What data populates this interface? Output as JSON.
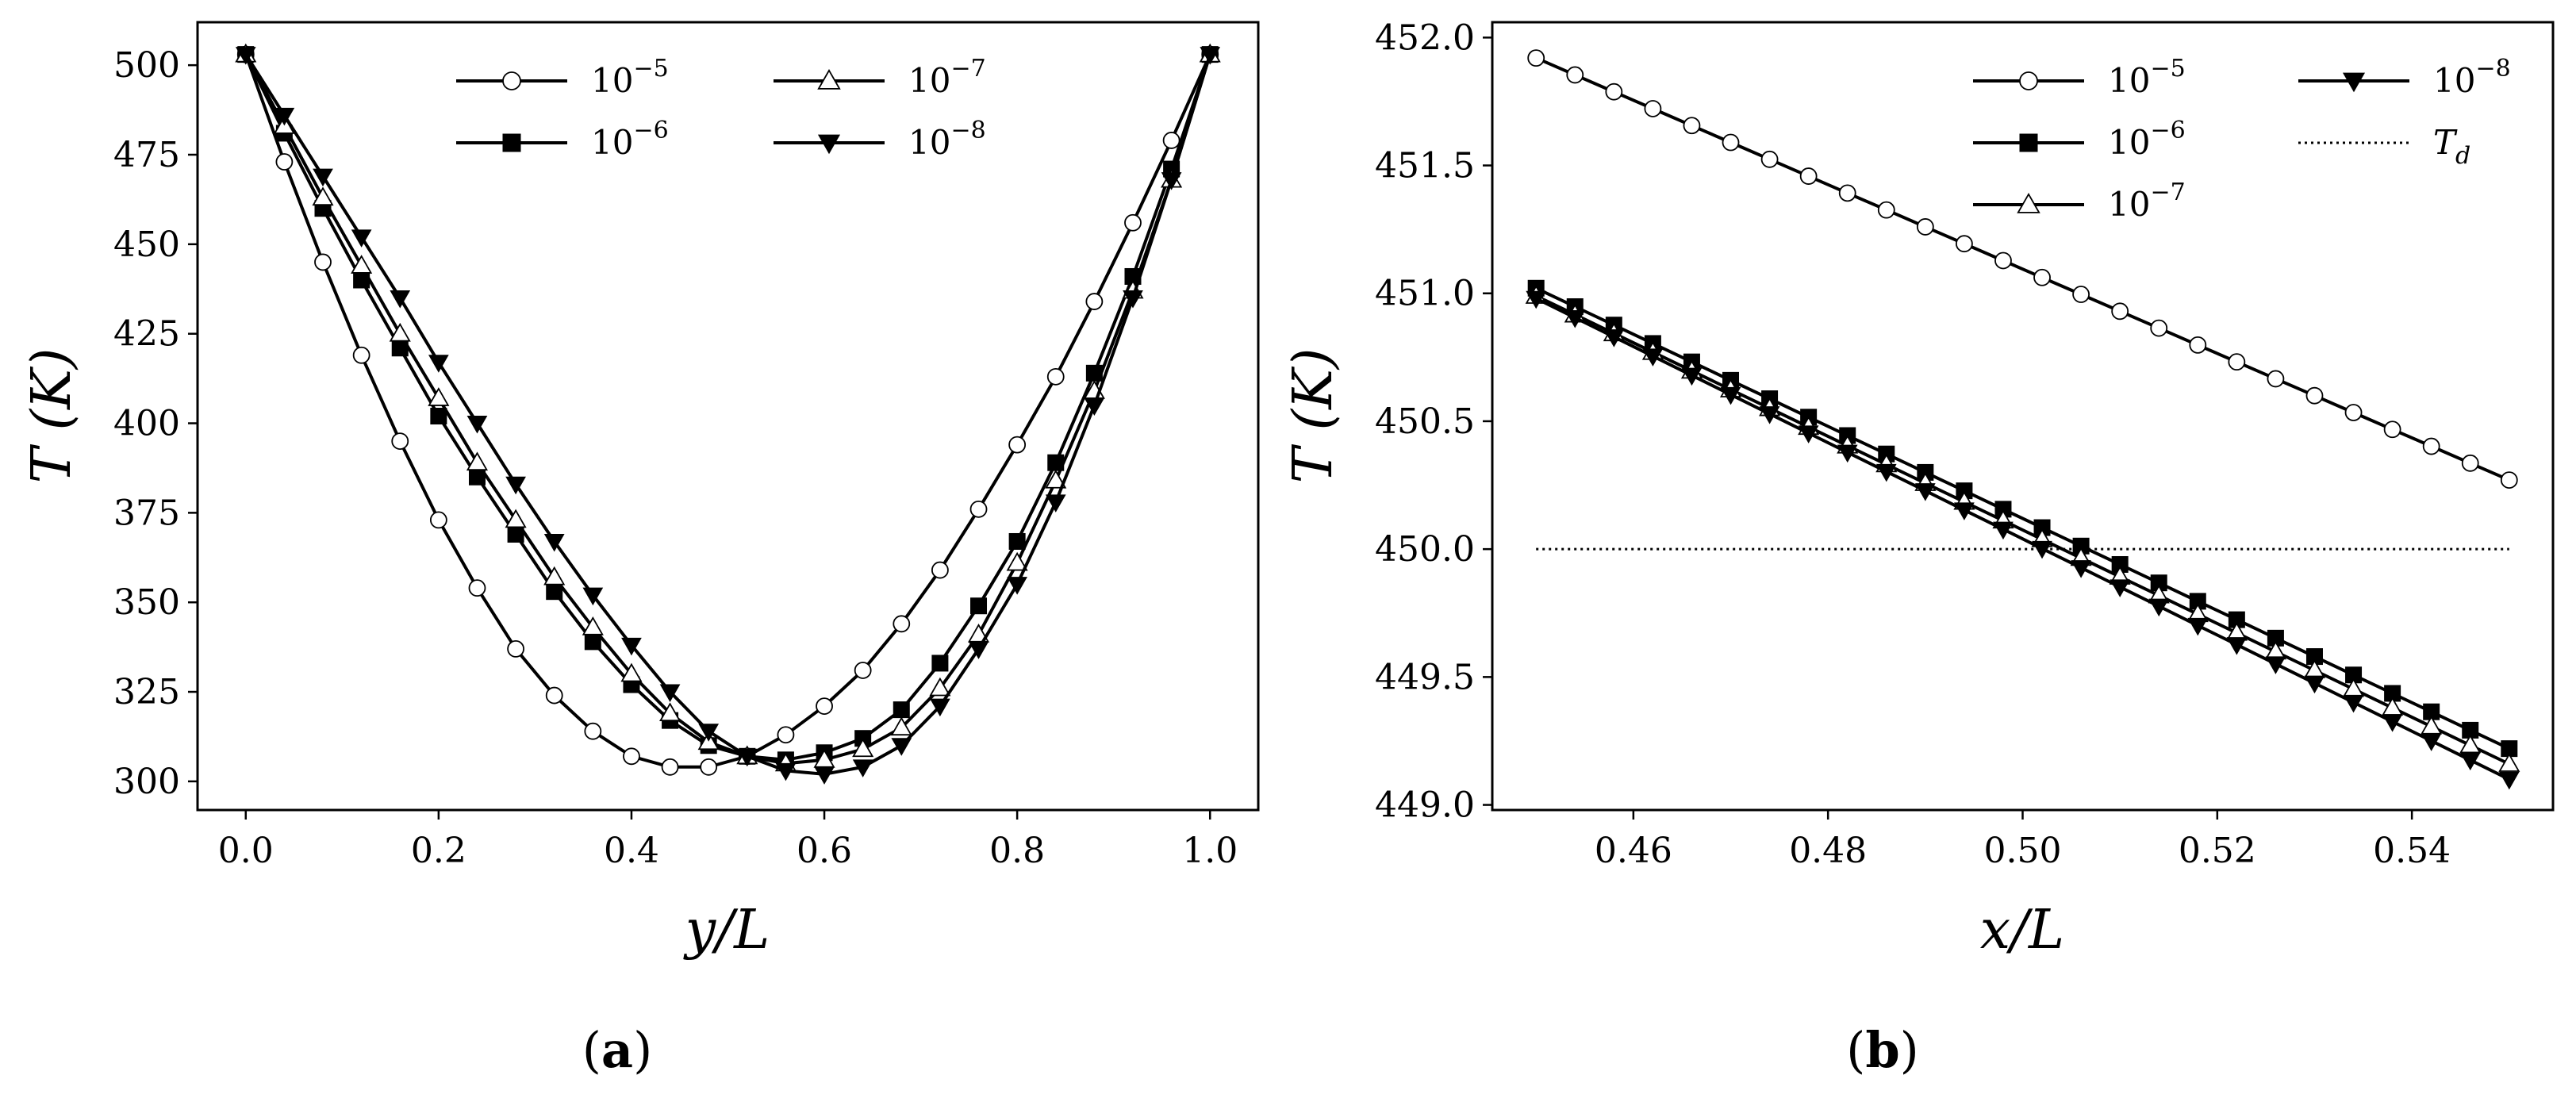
{
  "chart_data": [
    {
      "type": "line",
      "panel": "a",
      "caption_open": "(",
      "caption_letter": "a",
      "caption_close": ")",
      "xlabel": "y/L",
      "ylabel": "T (K)",
      "xlim": [
        -0.05,
        1.05
      ],
      "ylim": [
        292,
        512
      ],
      "xticks": [
        0.0,
        0.2,
        0.4,
        0.6,
        0.8,
        1.0
      ],
      "xtick_labels": [
        "0.0",
        "0.2",
        "0.4",
        "0.6",
        "0.8",
        "1.0"
      ],
      "yticks": [
        300,
        325,
        350,
        375,
        400,
        425,
        450,
        475,
        500
      ],
      "ytick_labels": [
        "300",
        "325",
        "350",
        "375",
        "400",
        "425",
        "450",
        "475",
        "500"
      ],
      "legend": {
        "placement": "top-center",
        "columns": 2,
        "entries": [
          {
            "base": "10",
            "exp": "−5"
          },
          {
            "base": "10",
            "exp": "−6"
          },
          {
            "base": "10",
            "exp": "−7"
          },
          {
            "base": "10",
            "exp": "−8"
          }
        ]
      },
      "series": [
        {
          "name": "1e-5",
          "marker": "circle",
          "x": [
            0.0,
            0.04,
            0.08,
            0.12,
            0.16,
            0.2,
            0.24,
            0.28,
            0.32,
            0.36,
            0.4,
            0.44,
            0.48,
            0.52,
            0.56,
            0.6,
            0.64,
            0.68,
            0.72,
            0.76,
            0.8,
            0.84,
            0.88,
            0.92,
            0.96,
            1.0
          ],
          "y": [
            503,
            473,
            445,
            419,
            395,
            373,
            354,
            337,
            324,
            314,
            307,
            304,
            304,
            307,
            313,
            321,
            331,
            344,
            359,
            376,
            394,
            413,
            434,
            456,
            479,
            503
          ]
        },
        {
          "name": "1e-6",
          "marker": "square",
          "x": [
            0.0,
            0.04,
            0.08,
            0.12,
            0.16,
            0.2,
            0.24,
            0.28,
            0.32,
            0.36,
            0.4,
            0.44,
            0.48,
            0.52,
            0.56,
            0.6,
            0.64,
            0.68,
            0.72,
            0.76,
            0.8,
            0.84,
            0.88,
            0.92,
            0.96,
            1.0
          ],
          "y": [
            503,
            481,
            460,
            440,
            421,
            402,
            385,
            369,
            353,
            339,
            327,
            317,
            310,
            307,
            306,
            308,
            312,
            320,
            333,
            349,
            367,
            389,
            414,
            441,
            471,
            503
          ]
        },
        {
          "name": "1e-7",
          "marker": "triangle-up",
          "x": [
            0.0,
            0.04,
            0.08,
            0.12,
            0.16,
            0.2,
            0.24,
            0.28,
            0.32,
            0.36,
            0.4,
            0.44,
            0.48,
            0.52,
            0.56,
            0.6,
            0.64,
            0.68,
            0.72,
            0.76,
            0.8,
            0.84,
            0.88,
            0.92,
            0.96,
            1.0
          ],
          "y": [
            503,
            483,
            463,
            444,
            425,
            407,
            389,
            373,
            357,
            343,
            330,
            319,
            311,
            307,
            305,
            306,
            309,
            315,
            326,
            341,
            361,
            384,
            409,
            437,
            468,
            503
          ]
        },
        {
          "name": "1e-8",
          "marker": "triangle-down",
          "x": [
            0.0,
            0.04,
            0.08,
            0.12,
            0.16,
            0.2,
            0.24,
            0.28,
            0.32,
            0.36,
            0.4,
            0.44,
            0.48,
            0.52,
            0.56,
            0.6,
            0.64,
            0.68,
            0.72,
            0.76,
            0.8,
            0.84,
            0.88,
            0.92,
            0.96,
            1.0
          ],
          "y": [
            503,
            486,
            469,
            452,
            435,
            417,
            400,
            383,
            367,
            352,
            338,
            325,
            314,
            307,
            303,
            302,
            304,
            310,
            321,
            337,
            355,
            378,
            405,
            435,
            468,
            503
          ]
        }
      ]
    },
    {
      "type": "line",
      "panel": "b",
      "caption_open": "(",
      "caption_letter": "b",
      "caption_close": ")",
      "xlabel": "x/L",
      "ylabel": "T (K)",
      "xlim": [
        0.4455,
        0.5545
      ],
      "ylim": [
        448.98,
        452.06
      ],
      "xticks": [
        0.46,
        0.48,
        0.5,
        0.52,
        0.54
      ],
      "xtick_labels": [
        "0.46",
        "0.48",
        "0.50",
        "0.52",
        "0.54"
      ],
      "yticks": [
        449.0,
        449.5,
        450.0,
        450.5,
        451.0,
        451.5,
        452.0
      ],
      "ytick_labels": [
        "449.0",
        "449.5",
        "450.0",
        "450.5",
        "451.0",
        "451.5",
        "452.0"
      ],
      "legend": {
        "placement": "top-right",
        "columns": 2,
        "entries": [
          {
            "base": "10",
            "exp": "−5"
          },
          {
            "base": "10",
            "exp": "−6"
          },
          {
            "base": "10",
            "exp": "−7"
          },
          {
            "base": "10",
            "exp": "−8"
          },
          {
            "base": "T",
            "sub": "d"
          }
        ]
      },
      "reference_line": {
        "name": "T_d",
        "y": 450.0,
        "x": [
          0.45,
          0.55
        ],
        "style": "dotted"
      },
      "series": [
        {
          "name": "1e-5",
          "marker": "circle",
          "x_start": 0.45,
          "x_end": 0.55,
          "points": 26,
          "y_start": 451.92,
          "y_end": 450.27,
          "curvature": 0.0
        },
        {
          "name": "1e-6",
          "marker": "square",
          "x_start": 0.45,
          "x_end": 0.55,
          "points": 26,
          "y_start": 451.02,
          "y_end": 449.22,
          "curvature": 0.0
        },
        {
          "name": "1e-7",
          "marker": "triangle-up",
          "x_start": 0.45,
          "x_end": 0.55,
          "points": 26,
          "y_start": 450.99,
          "y_end": 449.16,
          "curvature": 0.0
        },
        {
          "name": "1e-8",
          "marker": "triangle-down",
          "x_start": 0.45,
          "x_end": 0.55,
          "points": 26,
          "y_start": 450.98,
          "y_end": 449.1,
          "curvature": 0.0
        }
      ]
    }
  ]
}
